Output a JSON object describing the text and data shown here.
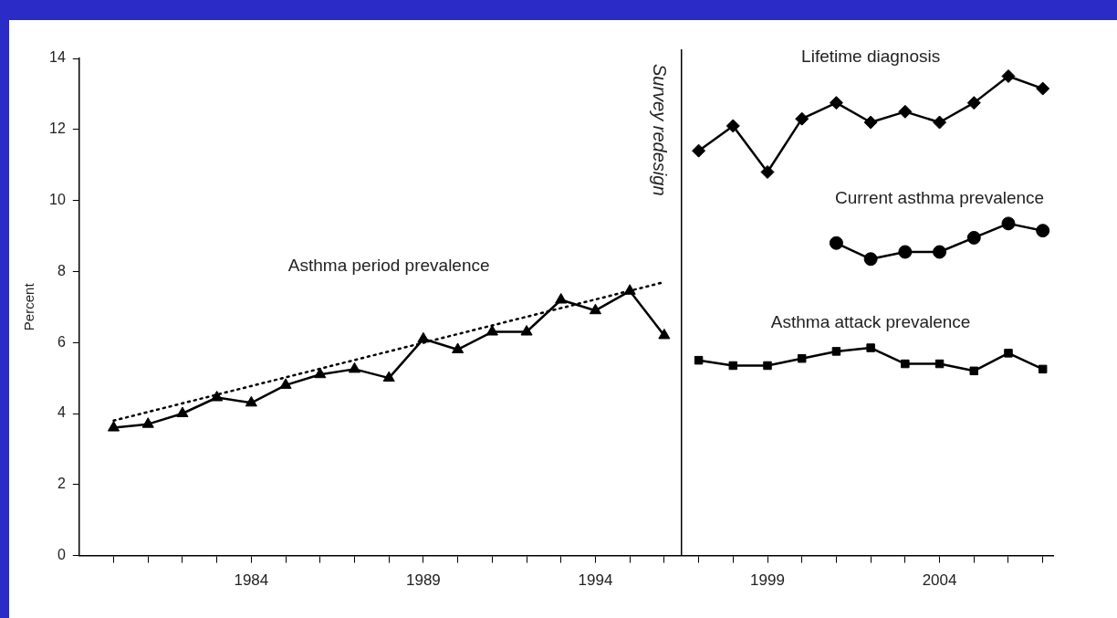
{
  "chart_data": {
    "type": "line",
    "ylabel": "Percent",
    "xlim": [
      1979,
      2007.3
    ],
    "xticks": [
      {
        "value": 1980,
        "label": null
      },
      {
        "value": 1981,
        "label": null
      },
      {
        "value": 1982,
        "label": null
      },
      {
        "value": 1983,
        "label": null
      },
      1984,
      {
        "value": 1985,
        "label": null
      },
      {
        "value": 1986,
        "label": null
      },
      {
        "value": 1987,
        "label": null
      },
      {
        "value": 1988,
        "label": null
      },
      1989,
      {
        "value": 1990,
        "label": null
      },
      {
        "value": 1991,
        "label": null
      },
      {
        "value": 1992,
        "label": null
      },
      {
        "value": 1993,
        "label": null
      },
      1994,
      {
        "value": 1995,
        "label": null
      },
      {
        "value": 1996,
        "label": null
      },
      {
        "value": 1997,
        "label": null
      },
      {
        "value": 1998,
        "label": null
      },
      1999,
      {
        "value": 2000,
        "label": null
      },
      {
        "value": 2001,
        "label": null
      },
      {
        "value": 2002,
        "label": null
      },
      {
        "value": 2003,
        "label": null
      },
      2004,
      {
        "value": 2005,
        "label": null
      },
      {
        "value": 2006,
        "label": null
      },
      {
        "value": 2007,
        "label": null
      }
    ],
    "ylim": [
      0,
      14
    ],
    "yticks": [
      0,
      2,
      4,
      6,
      8,
      10,
      12,
      14
    ],
    "grid": false,
    "ref_lines": [
      {
        "axis": "x",
        "value": 1996.5,
        "label": "Survey redesign",
        "color": "#000000"
      }
    ],
    "series": [
      {
        "name": "Asthma period prevalence",
        "color": "#000000",
        "marker": "triangle",
        "x": [
          1980,
          1981,
          1982,
          1983,
          1984,
          1985,
          1986,
          1987,
          1988,
          1989,
          1990,
          1991,
          1992,
          1993,
          1994,
          1995,
          1996
        ],
        "values": [
          3.6,
          3.7,
          4.0,
          4.45,
          4.3,
          4.8,
          5.1,
          5.25,
          5.0,
          6.1,
          5.8,
          6.3,
          6.3,
          7.2,
          6.9,
          7.45,
          6.2
        ]
      },
      {
        "type": "line",
        "color": "#000000",
        "marker": "none",
        "line_style": "dotted",
        "x": [
          1980,
          1996
        ],
        "values": [
          3.8,
          7.7
        ]
      },
      {
        "name": "Lifetime diagnosis",
        "color": "#000000",
        "marker": "diamond",
        "x": [
          1997,
          1998,
          1999,
          2000,
          2001,
          2002,
          2003,
          2004,
          2005,
          2006,
          2007
        ],
        "values": [
          11.4,
          12.1,
          10.8,
          12.3,
          12.75,
          12.2,
          12.5,
          12.2,
          12.75,
          13.5,
          13.15
        ]
      },
      {
        "name": "Current asthma prevalence",
        "color": "#000000",
        "marker": "circle",
        "x": [
          2001,
          2002,
          2003,
          2004,
          2005,
          2006,
          2007
        ],
        "values": [
          8.8,
          8.35,
          8.55,
          8.55,
          8.95,
          9.35,
          9.15
        ]
      },
      {
        "name": "Asthma attack prevalence",
        "color": "#000000",
        "marker": "square",
        "x": [
          1997,
          1998,
          1999,
          2000,
          2001,
          2002,
          2003,
          2004,
          2005,
          2006,
          2007
        ],
        "values": [
          5.5,
          5.35,
          5.35,
          5.55,
          5.75,
          5.85,
          5.4,
          5.4,
          5.2,
          5.7,
          5.25
        ]
      }
    ]
  }
}
